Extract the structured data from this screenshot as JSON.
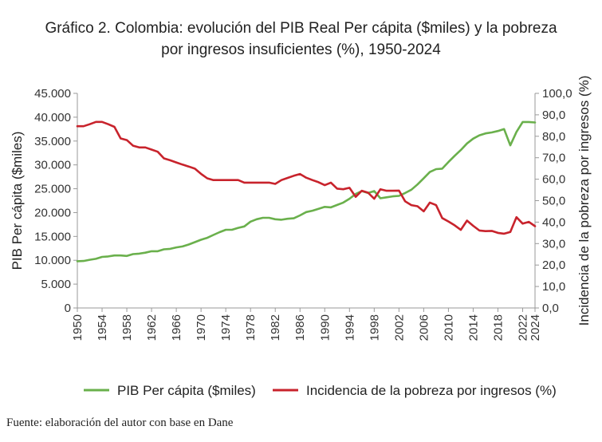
{
  "title_line1": "Gráfico 2. Colombia: evolución del PIB Real Per cápita ($miles) y la pobreza",
  "title_line2": "por ingresos insuficientes (%), 1950-2024",
  "source": "Fuente: elaboración del autor con base en Dane",
  "colors": {
    "pib": "#6ab04c",
    "pobreza": "#c8232c",
    "axis": "#999999"
  },
  "chart_data": {
    "type": "line",
    "xlabel": "",
    "ylabel": "PIB Per cápita ($miles)",
    "y2label": "Incidencia de la pobreza por ingresos (%)",
    "ylim": [
      0,
      45000
    ],
    "y2lim": [
      0,
      100
    ],
    "grid": false,
    "legend_position": "bottom",
    "y_ticks": [
      "0",
      "5.000",
      "10.000",
      "15.000",
      "20.000",
      "25.000",
      "30.000",
      "35.000",
      "40.000",
      "45.000"
    ],
    "y2_ticks": [
      "0,0",
      "10,0",
      "20,0",
      "30,0",
      "40,0",
      "50,0",
      "60,0",
      "70,0",
      "80,0",
      "90,0",
      "100,0"
    ],
    "x_ticks": [
      "1950",
      "1954",
      "1958",
      "1962",
      "1966",
      "1970",
      "1974",
      "1978",
      "1982",
      "1986",
      "1990",
      "1994",
      "1998",
      "2002",
      "2006",
      "2010",
      "2014",
      "2018",
      "2022",
      "2024"
    ],
    "x": [
      1950,
      1951,
      1952,
      1953,
      1954,
      1955,
      1956,
      1957,
      1958,
      1959,
      1960,
      1961,
      1962,
      1963,
      1964,
      1965,
      1966,
      1967,
      1968,
      1969,
      1970,
      1971,
      1972,
      1973,
      1974,
      1975,
      1976,
      1977,
      1978,
      1979,
      1980,
      1981,
      1982,
      1983,
      1984,
      1985,
      1986,
      1987,
      1988,
      1989,
      1990,
      1991,
      1992,
      1993,
      1994,
      1995,
      1996,
      1997,
      1998,
      1999,
      2000,
      2001,
      2002,
      2003,
      2004,
      2005,
      2006,
      2007,
      2008,
      2009,
      2010,
      2011,
      2012,
      2013,
      2014,
      2015,
      2016,
      2017,
      2018,
      2019,
      2020,
      2021,
      2022,
      2023,
      2024
    ],
    "series": [
      {
        "name": "PIB Per cápita ($miles)",
        "axis": "left",
        "values": [
          9800,
          9850,
          10100,
          10300,
          10700,
          10800,
          11000,
          11000,
          10900,
          11300,
          11400,
          11600,
          11900,
          11900,
          12300,
          12400,
          12700,
          12900,
          13300,
          13800,
          14300,
          14700,
          15300,
          15900,
          16400,
          16400,
          16800,
          17100,
          18100,
          18600,
          18900,
          18900,
          18600,
          18500,
          18700,
          18800,
          19400,
          20100,
          20400,
          20800,
          21200,
          21100,
          21600,
          22100,
          22900,
          23900,
          24500,
          24100,
          24500,
          23000,
          23200,
          23400,
          23500,
          24100,
          24800,
          25900,
          27200,
          28500,
          29100,
          29200,
          30600,
          31900,
          33100,
          34500,
          35500,
          36200,
          36600,
          36800,
          37100,
          37500,
          34100,
          36900,
          39000,
          39000,
          38900
        ]
      },
      {
        "name": "Incidencia de la pobreza por ingresos (%)",
        "axis": "right",
        "values": [
          84.7,
          84.7,
          85.6,
          86.7,
          86.7,
          85.6,
          84.4,
          79.0,
          78.2,
          75.6,
          74.8,
          74.8,
          73.8,
          72.8,
          69.7,
          68.8,
          67.8,
          66.8,
          65.9,
          64.9,
          62.5,
          60.4,
          59.6,
          59.6,
          59.6,
          59.6,
          59.6,
          58.4,
          58.4,
          58.4,
          58.4,
          58.4,
          57.8,
          59.6,
          60.6,
          61.6,
          62.4,
          60.7,
          59.6,
          58.6,
          57.2,
          58.4,
          55.6,
          55.3,
          56.0,
          51.8,
          54.6,
          53.7,
          50.9,
          55.3,
          54.6,
          54.6,
          54.7,
          49.7,
          47.9,
          47.4,
          45.0,
          49.1,
          47.9,
          41.9,
          40.3,
          38.5,
          36.4,
          40.7,
          38.3,
          36.1,
          35.8,
          35.9,
          35.0,
          34.6,
          35.4,
          42.3,
          39.3,
          40.1,
          38.1
        ]
      }
    ]
  }
}
